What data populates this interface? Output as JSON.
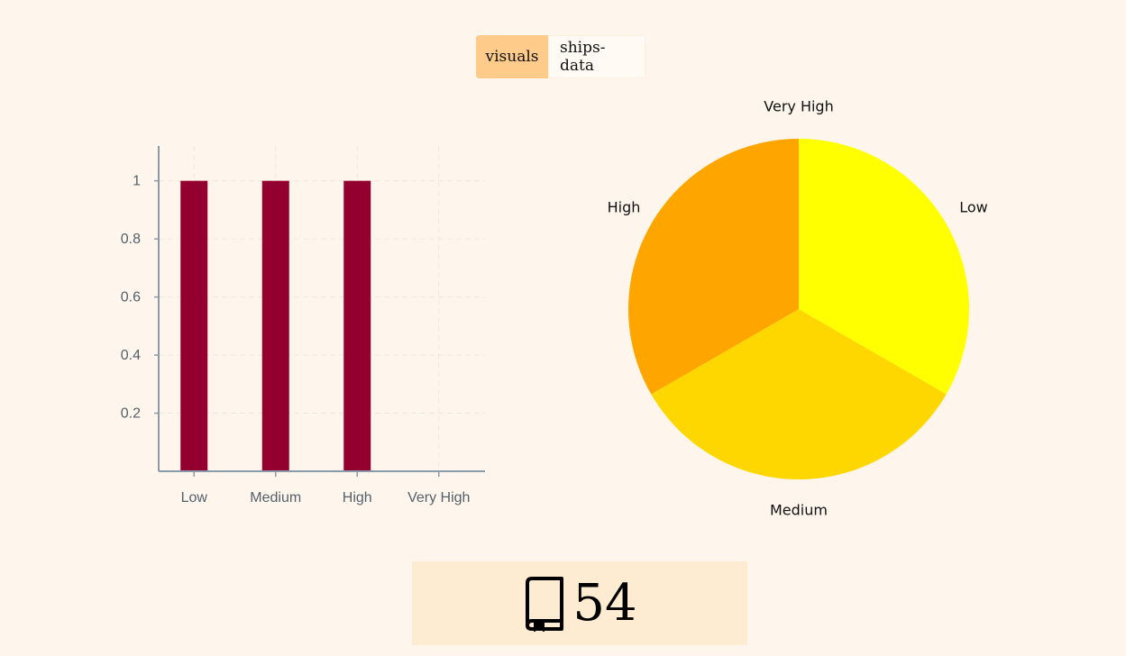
{
  "tabs": [
    {
      "label": "visuals",
      "active": true
    },
    {
      "label": "ships-data",
      "active": false
    }
  ],
  "counter": {
    "icon": "book-bookmark-icon",
    "value": "54"
  },
  "colors": {
    "bar": "#930030",
    "pie": [
      "#ffff00",
      "#ffd700",
      "#ffa500"
    ],
    "axis": "#8a9aa8",
    "tick_text": "#55606a"
  },
  "chart_data": [
    {
      "type": "bar",
      "categories": [
        "Low",
        "Medium",
        "High",
        "Very High"
      ],
      "values": [
        1,
        1,
        1,
        0
      ],
      "yticks": [
        0.2,
        0.4,
        0.6,
        0.8,
        1
      ],
      "ylim": [
        0,
        1.12
      ],
      "grid": true
    },
    {
      "type": "pie",
      "labels": [
        "Low",
        "Medium",
        "High",
        "Very High"
      ],
      "values": [
        1,
        1,
        1,
        0
      ]
    }
  ]
}
